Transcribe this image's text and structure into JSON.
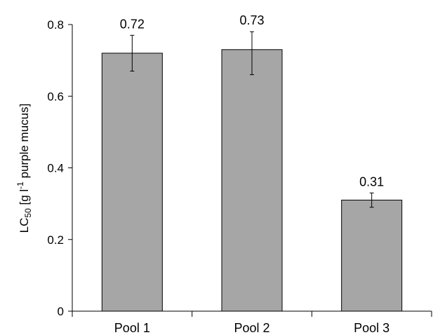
{
  "chart_data": {
    "type": "bar",
    "categories": [
      "Pool 1",
      "Pool 2",
      "Pool 3"
    ],
    "values": [
      0.72,
      0.73,
      0.31
    ],
    "value_labels": [
      "0.72",
      "0.73",
      "0.31"
    ],
    "error_low": [
      0.67,
      0.66,
      0.29
    ],
    "error_high": [
      0.77,
      0.78,
      0.33
    ],
    "ylabel": {
      "prefix": "LC",
      "sub": "50",
      "mid": " [g l",
      "sup": "-1",
      "suffix": " purple mucus]"
    },
    "ylim": [
      0,
      0.8
    ],
    "yticks": [
      0,
      0.2,
      0.4,
      0.6,
      0.8
    ],
    "ytick_labels": [
      "0",
      "0.2",
      "0.4",
      "0.6",
      "0.8"
    ],
    "grid": false,
    "bar_color": "#a6a6a6",
    "bar_edge_color": "#000000"
  }
}
